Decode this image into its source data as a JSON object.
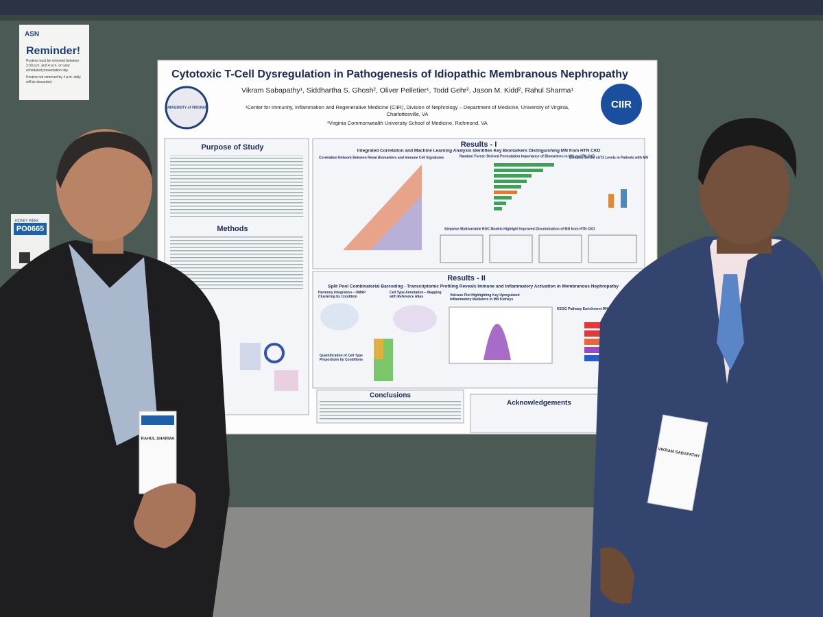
{
  "reminder": {
    "brand": "ASN",
    "title": "Reminder!",
    "lines": [
      "Posters must be removed between 3:30 p.m. and 4 p.m. on your scheduled presentation day.",
      "Posters not removed by 4 p.m. daily will be discarded."
    ]
  },
  "poster_number": {
    "event": "KIDNEY WEEK",
    "number": "PO0665"
  },
  "poster": {
    "title": "Cytotoxic T-Cell Dysregulation in Pathogenesis of Idiopathic Membranous Nephropathy",
    "authors": "Vikram Sabapathy¹, Siddhartha S. Ghosh², Oliver Pelletier¹, Todd Gehr², Jason M. Kidd², Rahul Sharma¹",
    "affiliations": [
      "¹Center for Immunity, Inflammation and Regenerative Medicine (CIIR), Division of Nephrology – Department of Medicine, University of Virginia,",
      "Charlottesville, VA",
      "²Virginia Commonwealth University School of Medicine, Richmond, VA"
    ],
    "left_logo": "UNIVERSITY of VIRGINIA",
    "right_logo": "CIIR",
    "sections": {
      "purpose": "Purpose of Study",
      "methods": "Methods",
      "results1": {
        "title": "Results - I",
        "subtitle": "Integrated Correlation and Machine Learning Analysis Identifies Key Biomarkers Distinguishing MN from HTN CKD",
        "panels": [
          "Correlation Network Between Renal Biomarkers and Immune Cell Signatures",
          "Random Forest–Derived Permutation Importance of Biomarkers in MN vs HTN CKD",
          "Elevated Serum sST2 Levels in Patients with MN",
          "Stepwise Multivariable ROC Models Highlight Improved Discrimination of MN from HTN CKD"
        ]
      },
      "results2": {
        "title": "Results - II",
        "subtitle": "Split Pool Combinatorial Barcoding - Transcriptomic Profiling Reveals Immune and Inflammatory Activation in Membranous Nephropathy",
        "panels": [
          "Harmony Integration – UMAP Clustering by Condition",
          "Cell Type Annotation – Mapping with Reference Atlas",
          "Volcano Plot Highlighting Key Upregulated Inflammatory Mediators in MN Kidneys",
          "KEGG Pathway Enrichment MN VS HTN CKD",
          "Quantification of Cell Type Proportions by Conditions"
        ]
      },
      "conclusions": "Conclusions",
      "acknowledgements": "Acknowledgements"
    }
  },
  "badges": {
    "left": "RAHUL SHARMA",
    "right": "VIKRAM SABAPATHY"
  }
}
